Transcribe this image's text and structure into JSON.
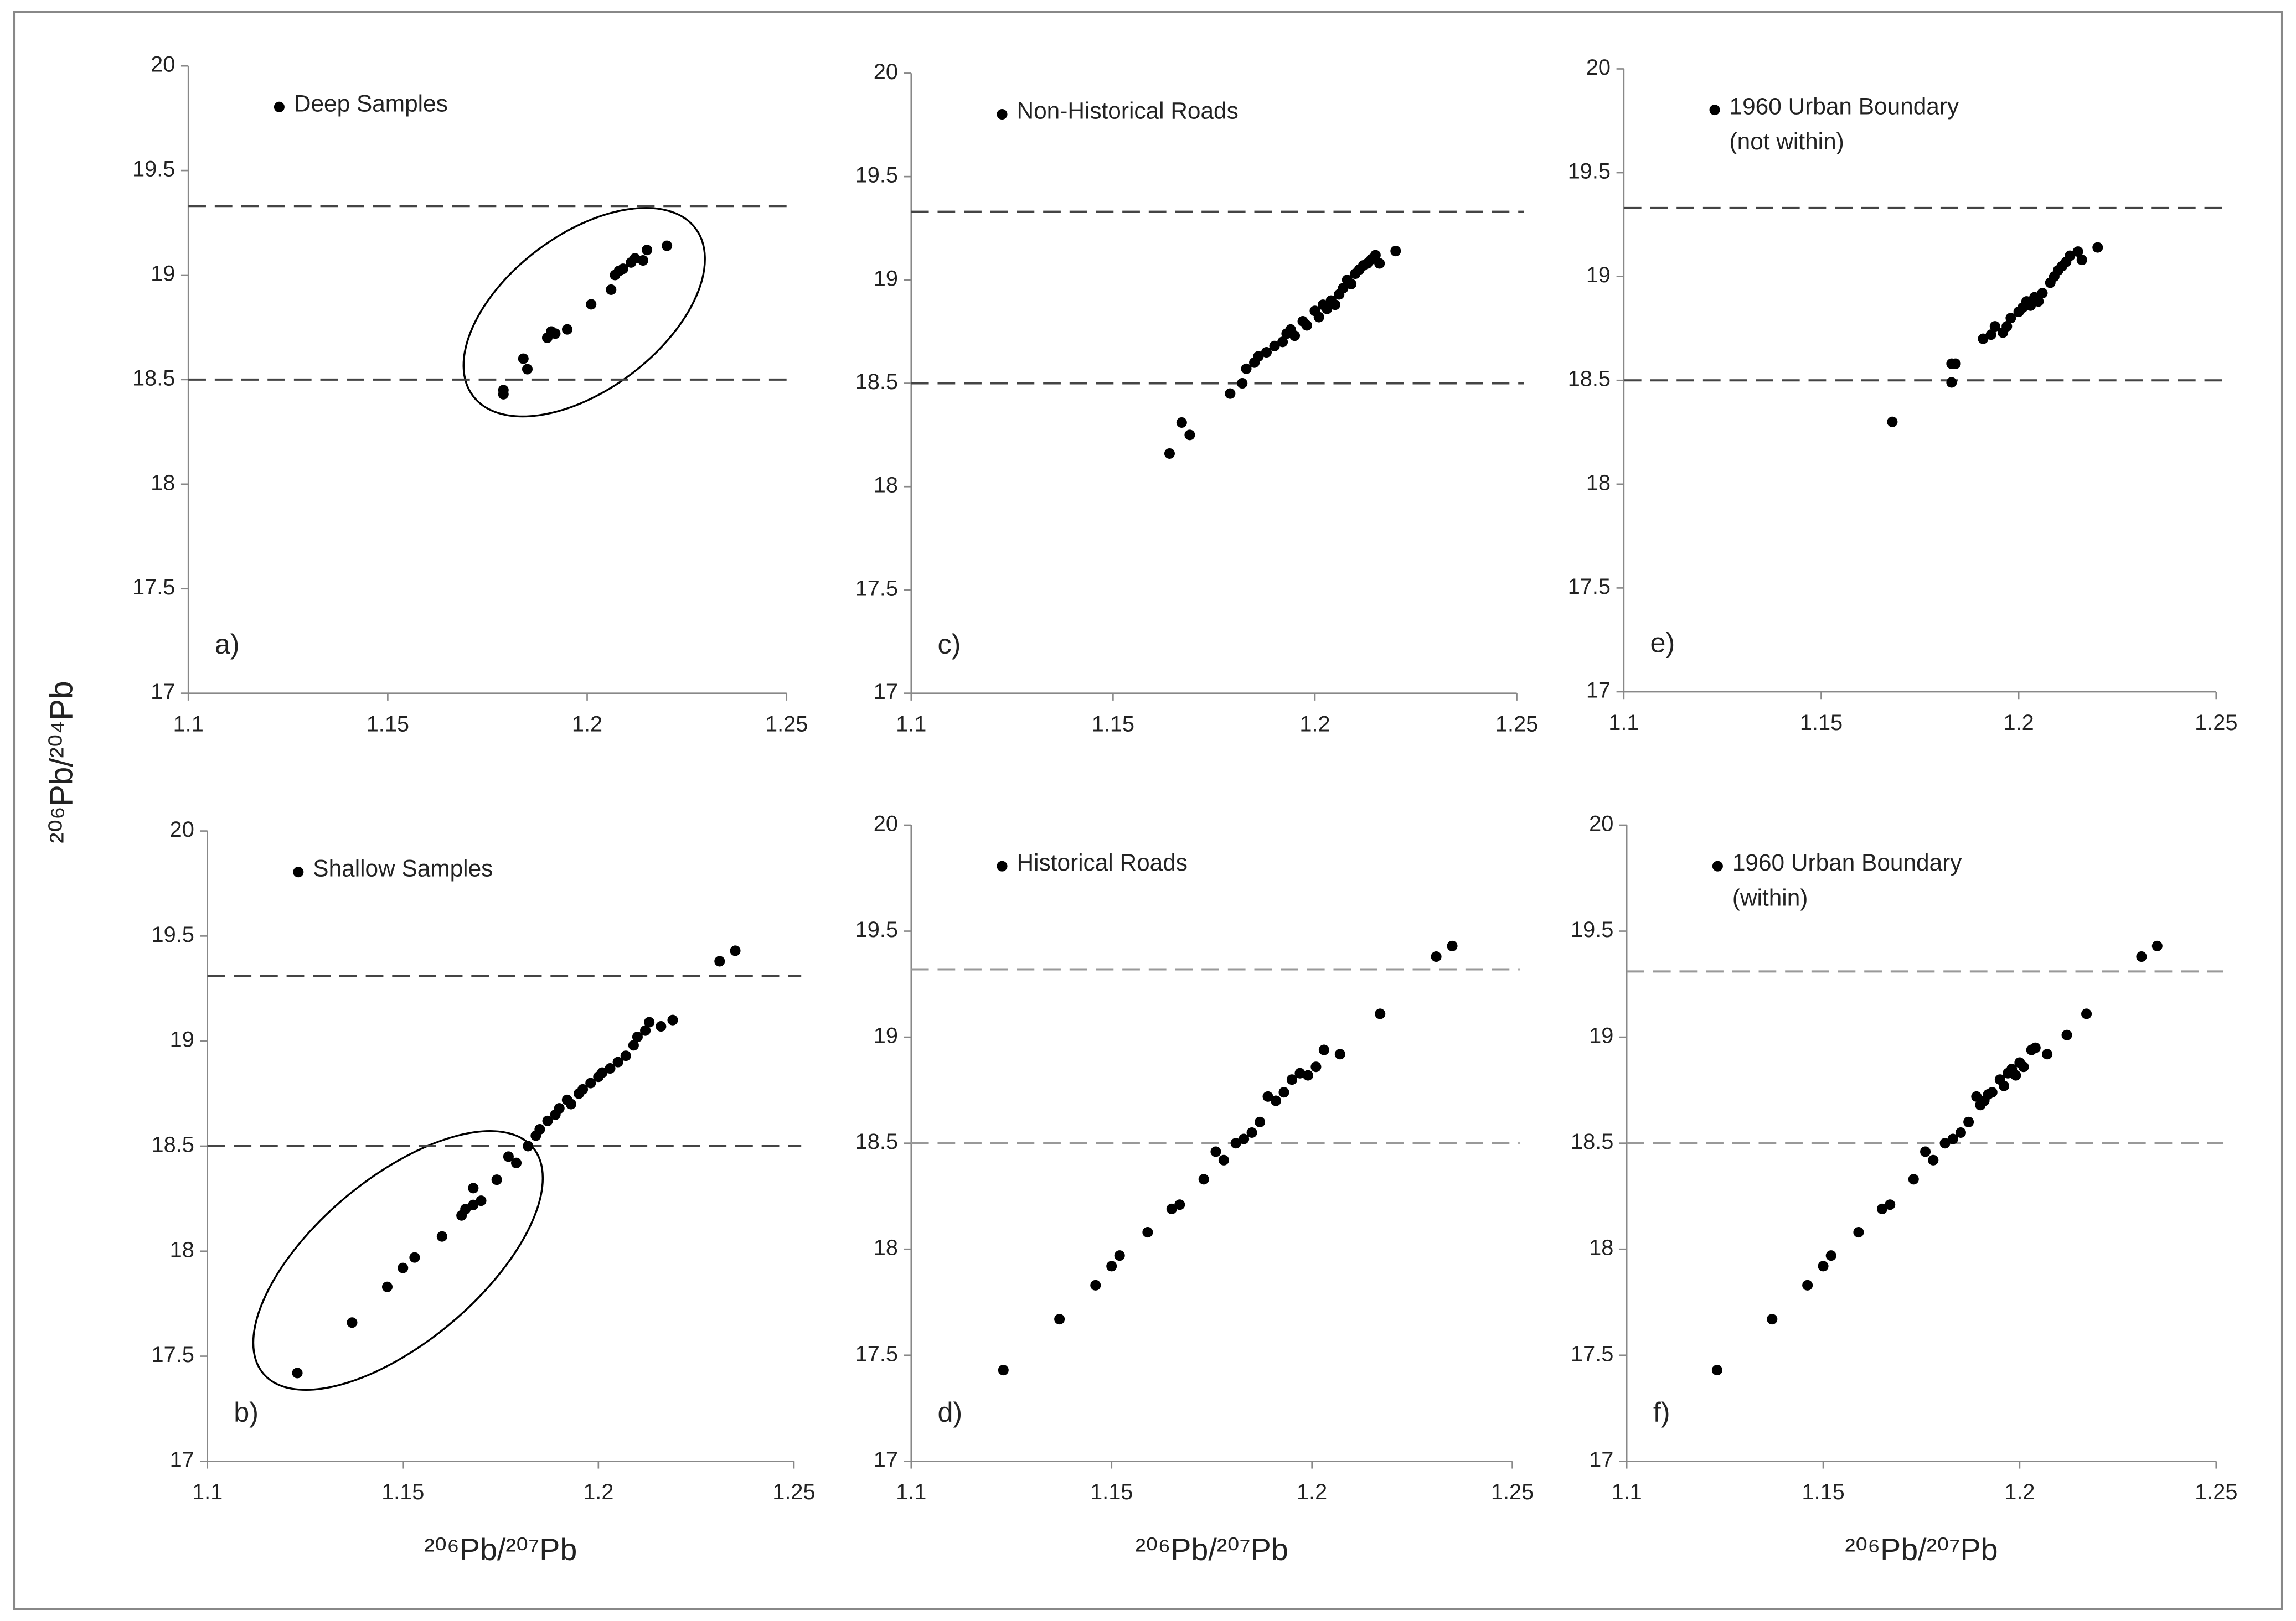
{
  "ylabel": "²⁰⁶Pb/²⁰⁴Pb",
  "chart_data": [
    {
      "type": "scatter",
      "label": "a)",
      "xlim": [
        1.1,
        1.25
      ],
      "ylim": [
        17,
        20
      ],
      "xticks": [
        1.1,
        1.15,
        1.2,
        1.25
      ],
      "yticks": [
        17,
        17.5,
        18,
        18.5,
        19,
        19.5,
        20
      ],
      "hlines": [
        18.5,
        19.33
      ],
      "hline_color": "#444",
      "series": [
        {
          "name": "Deep Samples",
          "color": "#000",
          "x": [
            1.179,
            1.179,
            1.184,
            1.185,
            1.19,
            1.191,
            1.192,
            1.195,
            1.201,
            1.206,
            1.207,
            1.208,
            1.209,
            1.211,
            1.212,
            1.214,
            1.215,
            1.22
          ],
          "values": [
            18.43,
            18.45,
            18.6,
            18.55,
            18.7,
            18.73,
            18.72,
            18.74,
            18.86,
            18.93,
            19.0,
            19.02,
            19.03,
            19.06,
            19.08,
            19.07,
            19.12,
            19.14
          ]
        }
      ]
    },
    {
      "type": "scatter",
      "label": "c)",
      "xlim": [
        1.1,
        1.25
      ],
      "ylim": [
        17,
        20
      ],
      "xticks": [
        1.1,
        1.15,
        1.2,
        1.25
      ],
      "yticks": [
        17,
        17.5,
        18,
        18.5,
        19,
        19.5,
        20
      ],
      "hlines": [
        18.5,
        19.33
      ],
      "hline_color": "#444",
      "series": [
        {
          "name": "Non-Historical Roads",
          "color": "#000",
          "x": [
            1.164,
            1.167,
            1.169,
            1.179,
            1.182,
            1.183,
            1.185,
            1.186,
            1.188,
            1.19,
            1.192,
            1.193,
            1.194,
            1.195,
            1.197,
            1.198,
            1.2,
            1.201,
            1.202,
            1.203,
            1.204,
            1.205,
            1.206,
            1.207,
            1.208,
            1.209,
            1.21,
            1.211,
            1.212,
            1.213,
            1.214,
            1.215,
            1.216,
            1.22
          ],
          "values": [
            18.16,
            18.31,
            18.25,
            18.45,
            18.5,
            18.57,
            18.6,
            18.63,
            18.65,
            18.68,
            18.7,
            18.74,
            18.76,
            18.73,
            18.8,
            18.78,
            18.85,
            18.82,
            18.88,
            18.86,
            18.9,
            18.88,
            18.93,
            18.96,
            19.0,
            18.98,
            19.03,
            19.05,
            19.07,
            19.08,
            19.1,
            19.12,
            19.08,
            19.14
          ]
        }
      ]
    },
    {
      "type": "scatter",
      "label": "e)",
      "xlim": [
        1.1,
        1.25
      ],
      "ylim": [
        17,
        20
      ],
      "xticks": [
        1.1,
        1.15,
        1.2,
        1.25
      ],
      "yticks": [
        17,
        17.5,
        18,
        18.5,
        19,
        19.5,
        20
      ],
      "hlines": [
        18.5,
        19.33
      ],
      "hline_color": "#444",
      "series": [
        {
          "name": "1960 Urban Boundary\n(not within)",
          "color": "#000",
          "x": [
            1.168,
            1.183,
            1.183,
            1.184,
            1.191,
            1.193,
            1.194,
            1.196,
            1.197,
            1.198,
            1.2,
            1.201,
            1.202,
            1.203,
            1.204,
            1.205,
            1.206,
            1.208,
            1.209,
            1.21,
            1.211,
            1.212,
            1.213,
            1.215,
            1.216,
            1.22
          ],
          "values": [
            18.3,
            18.49,
            18.58,
            18.58,
            18.7,
            18.72,
            18.76,
            18.73,
            18.76,
            18.8,
            18.83,
            18.85,
            18.88,
            18.86,
            18.9,
            18.88,
            18.92,
            18.97,
            19.0,
            19.03,
            19.05,
            19.07,
            19.1,
            19.12,
            19.08,
            19.14
          ]
        }
      ]
    },
    {
      "type": "scatter",
      "label": "b)",
      "xlabel": "²⁰⁶Pb/²⁰⁷Pb",
      "xlim": [
        1.1,
        1.25
      ],
      "ylim": [
        17,
        20
      ],
      "xticks": [
        1.1,
        1.15,
        1.2,
        1.25
      ],
      "yticks": [
        17,
        17.5,
        18,
        18.5,
        19,
        19.5,
        20
      ],
      "hlines": [
        18.5,
        19.31
      ],
      "hline_color": "#444",
      "series": [
        {
          "name": "Shallow Samples",
          "color": "#000",
          "x": [
            1.123,
            1.137,
            1.146,
            1.15,
            1.153,
            1.16,
            1.165,
            1.166,
            1.168,
            1.17,
            1.168,
            1.174,
            1.177,
            1.179,
            1.182,
            1.184,
            1.185,
            1.187,
            1.189,
            1.19,
            1.192,
            1.193,
            1.195,
            1.196,
            1.198,
            1.2,
            1.201,
            1.203,
            1.205,
            1.207,
            1.209,
            1.21,
            1.212,
            1.213,
            1.216,
            1.219,
            1.231,
            1.235
          ],
          "values": [
            17.42,
            17.66,
            17.83,
            17.92,
            17.97,
            18.07,
            18.17,
            18.2,
            18.22,
            18.24,
            18.3,
            18.34,
            18.45,
            18.42,
            18.5,
            18.55,
            18.58,
            18.62,
            18.65,
            18.68,
            18.72,
            18.7,
            18.75,
            18.77,
            18.8,
            18.83,
            18.85,
            18.87,
            18.9,
            18.93,
            18.98,
            19.02,
            19.05,
            19.09,
            19.07,
            19.1,
            19.38,
            19.43
          ]
        }
      ]
    },
    {
      "type": "scatter",
      "label": "d)",
      "xlabel": "²⁰⁶Pb/²⁰⁷Pb",
      "xlim": [
        1.1,
        1.25
      ],
      "ylim": [
        17,
        20
      ],
      "xticks": [
        1.1,
        1.15,
        1.2,
        1.25
      ],
      "yticks": [
        17,
        17.5,
        18,
        18.5,
        19,
        19.5,
        20
      ],
      "hlines": [
        18.5,
        19.32
      ],
      "hline_color": "#999",
      "series": [
        {
          "name": "Historical Roads",
          "color": "#000",
          "x": [
            1.123,
            1.137,
            1.146,
            1.15,
            1.152,
            1.159,
            1.165,
            1.167,
            1.173,
            1.176,
            1.178,
            1.181,
            1.183,
            1.185,
            1.187,
            1.189,
            1.191,
            1.193,
            1.195,
            1.197,
            1.199,
            1.201,
            1.203,
            1.207,
            1.217,
            1.231,
            1.235
          ],
          "values": [
            17.43,
            17.67,
            17.83,
            17.92,
            17.97,
            18.08,
            18.19,
            18.21,
            18.33,
            18.46,
            18.42,
            18.5,
            18.52,
            18.55,
            18.6,
            18.72,
            18.7,
            18.74,
            18.8,
            18.83,
            18.82,
            18.86,
            18.94,
            18.92,
            19.11,
            19.38,
            19.43
          ]
        }
      ]
    },
    {
      "type": "scatter",
      "label": "f)",
      "xlabel": "²⁰⁶Pb/²⁰⁷Pb",
      "xlim": [
        1.1,
        1.25
      ],
      "ylim": [
        17,
        20
      ],
      "xticks": [
        1.1,
        1.15,
        1.2,
        1.25
      ],
      "yticks": [
        17,
        17.5,
        18,
        18.5,
        19,
        19.5,
        20
      ],
      "hlines": [
        18.5,
        19.31
      ],
      "hline_color": "#999",
      "series": [
        {
          "name": "1960 Urban Boundary\n(within)",
          "color": "#000",
          "x": [
            1.123,
            1.137,
            1.146,
            1.15,
            1.152,
            1.159,
            1.165,
            1.167,
            1.173,
            1.176,
            1.178,
            1.181,
            1.183,
            1.185,
            1.187,
            1.189,
            1.19,
            1.191,
            1.192,
            1.193,
            1.195,
            1.196,
            1.197,
            1.198,
            1.199,
            1.2,
            1.201,
            1.203,
            1.204,
            1.207,
            1.212,
            1.217,
            1.231,
            1.235
          ],
          "values": [
            17.43,
            17.67,
            17.83,
            17.92,
            17.97,
            18.08,
            18.19,
            18.21,
            18.33,
            18.46,
            18.42,
            18.5,
            18.52,
            18.55,
            18.6,
            18.72,
            18.68,
            18.7,
            18.73,
            18.74,
            18.8,
            18.77,
            18.83,
            18.85,
            18.82,
            18.88,
            18.86,
            18.94,
            18.95,
            18.92,
            19.01,
            19.11,
            19.38,
            19.43
          ]
        }
      ]
    }
  ]
}
